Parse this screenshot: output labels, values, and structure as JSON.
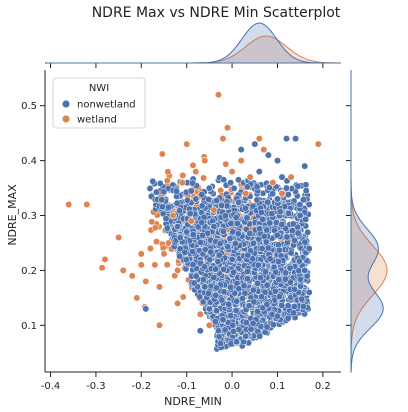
{
  "chart_data": {
    "type": "scatter",
    "title": "NDRE Max vs NDRE Min Scatterplot",
    "xlabel": "NDRE_MIN",
    "ylabel": "NDRE_MAX",
    "xlim": [
      -0.41,
      0.24
    ],
    "ylim": [
      0.015,
      0.565
    ],
    "x_ticks": [
      -0.4,
      -0.3,
      -0.2,
      -0.1,
      0.0,
      0.1,
      0.2
    ],
    "x_tick_labels": [
      "-0.4",
      "-0.3",
      "-0.2",
      "-0.1",
      "0.0",
      "0.1",
      "0.2"
    ],
    "y_ticks": [
      0.1,
      0.2,
      0.3,
      0.4,
      0.5
    ],
    "y_tick_labels": [
      "0.1",
      "0.2",
      "0.3",
      "0.4",
      "0.5"
    ],
    "grid": false,
    "legend": {
      "title": "NWI",
      "placement": "top-left",
      "entries": [
        {
          "name": "nonwetland",
          "color": "#4c72b0"
        },
        {
          "name": "wetland",
          "color": "#dd8452"
        }
      ]
    },
    "series": [
      {
        "name": "nonwetland",
        "color": "#4c72b0",
        "points": [
          [
            -0.19,
            0.13
          ],
          [
            -0.12,
            0.28
          ],
          [
            -0.1,
            0.27
          ],
          [
            -0.08,
            0.33
          ],
          [
            -0.05,
            0.35
          ],
          [
            -0.03,
            0.09
          ],
          [
            -0.02,
            0.11
          ],
          [
            0.0,
            0.22
          ],
          [
            0.02,
            0.42
          ],
          [
            0.05,
            0.43
          ],
          [
            0.08,
            0.41
          ],
          [
            0.1,
            0.4
          ],
          [
            0.12,
            0.44
          ],
          [
            0.14,
            0.44
          ],
          [
            0.16,
            0.39
          ],
          [
            0.17,
            0.32
          ],
          [
            0.17,
            0.24
          ],
          [
            0.17,
            0.16
          ],
          [
            0.16,
            0.2
          ],
          [
            0.15,
            0.3
          ],
          [
            0.12,
            0.35
          ],
          [
            0.1,
            0.33
          ],
          [
            0.06,
            0.38
          ],
          [
            0.03,
            0.08
          ],
          [
            0.01,
            0.07
          ],
          [
            -0.05,
            0.13
          ],
          [
            -0.06,
            0.17
          ],
          [
            -0.07,
            0.09
          ],
          [
            -0.04,
            0.28
          ],
          [
            0.11,
            0.37
          ]
        ],
        "core_density": [
          [
            -0.04,
            0.06
          ],
          [
            0.17,
            0.26
          ],
          [
            0.0,
            0.25
          ],
          [
            -0.02,
            0.15
          ],
          [
            0.04,
            0.1
          ]
        ]
      },
      {
        "name": "wetland",
        "color": "#dd8452",
        "points": [
          [
            -0.36,
            0.32
          ],
          [
            -0.32,
            0.32
          ],
          [
            -0.28,
            0.22
          ],
          [
            -0.25,
            0.26
          ],
          [
            -0.24,
            0.2
          ],
          [
            -0.22,
            0.19
          ],
          [
            -0.21,
            0.15
          ],
          [
            -0.2,
            0.21
          ],
          [
            -0.19,
            0.18
          ],
          [
            -0.18,
            0.24
          ],
          [
            -0.17,
            0.21
          ],
          [
            -0.16,
            0.17
          ],
          [
            -0.15,
            0.23
          ],
          [
            -0.14,
            0.25
          ],
          [
            -0.13,
            0.3
          ],
          [
            -0.12,
            0.14
          ],
          [
            -0.11,
            0.36
          ],
          [
            -0.1,
            0.43
          ],
          [
            -0.09,
            0.29
          ],
          [
            -0.08,
            0.38
          ],
          [
            -0.06,
            0.4
          ],
          [
            -0.04,
            0.31
          ],
          [
            -0.02,
            0.44
          ],
          [
            -0.01,
            0.46
          ],
          [
            0.0,
            0.38
          ],
          [
            0.02,
            0.4
          ],
          [
            0.04,
            0.37
          ],
          [
            0.06,
            0.44
          ],
          [
            -0.07,
            0.12
          ],
          [
            -0.05,
            0.1
          ],
          [
            0.07,
            0.42
          ],
          [
            0.09,
            0.36
          ],
          [
            0.11,
            0.34
          ],
          [
            0.13,
            0.37
          ],
          [
            0.19,
            0.43
          ],
          [
            -0.03,
            0.52
          ],
          [
            -0.2,
            0.23
          ],
          [
            -0.16,
            0.1
          ],
          [
            0.03,
            0.34
          ],
          [
            -0.12,
            0.2
          ]
        ],
        "core_density": [
          [
            -0.14,
            0.18
          ],
          [
            0.05,
            0.31
          ],
          [
            -0.05,
            0.27
          ],
          [
            -0.1,
            0.22
          ]
        ]
      }
    ],
    "marginal_x": {
      "nonwetland": {
        "peak_x": 0.06,
        "spread": 0.038
      },
      "wetland": {
        "peak_x": 0.075,
        "spread": 0.045
      }
    },
    "marginal_y": {
      "nonwetland": {
        "peaks": [
          0.13,
          0.24
        ],
        "spread": 0.035
      },
      "wetland": {
        "peaks": [
          0.2
        ],
        "spread": 0.045
      }
    }
  }
}
